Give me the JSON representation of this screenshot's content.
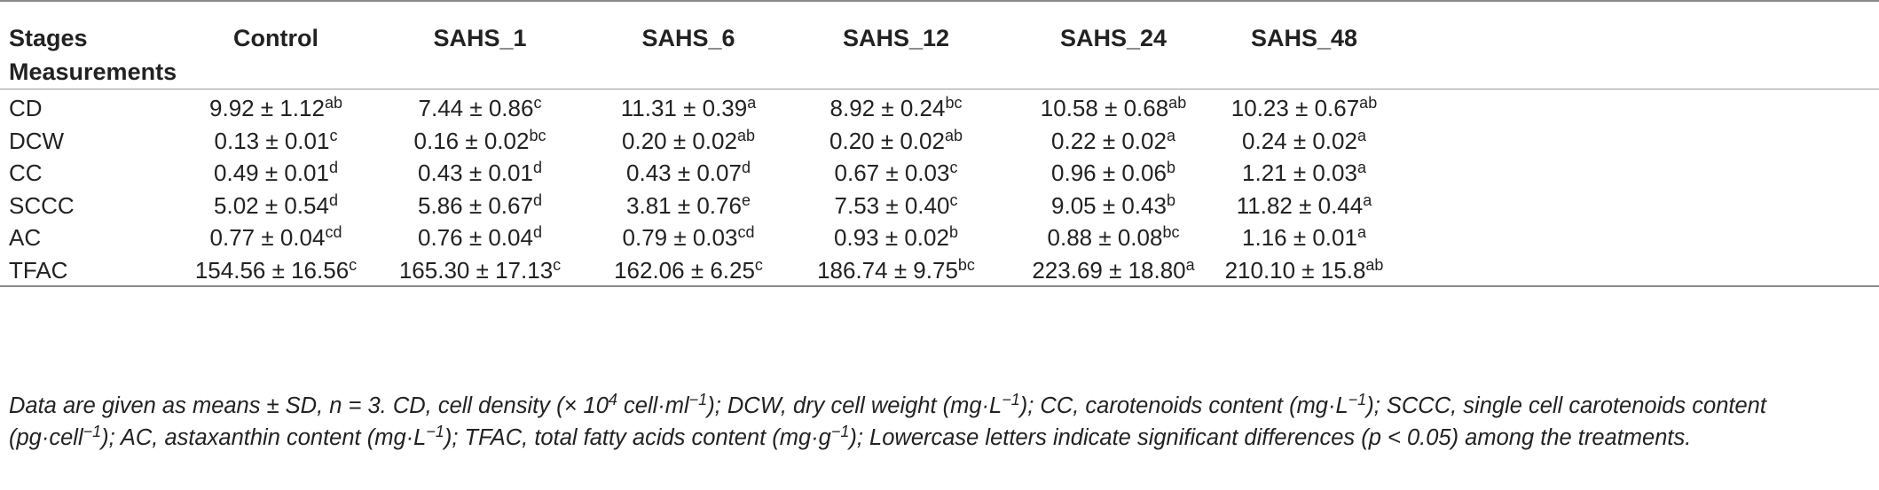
{
  "table": {
    "header_stages": "Stages",
    "header_measurements": "Measurements",
    "columns": [
      "Control",
      "SAHS_1",
      "SAHS_6",
      "SAHS_12",
      "SAHS_24",
      "SAHS_48"
    ],
    "rows": [
      {
        "label": "CD",
        "cells": [
          {
            "v": "9.92 ± 1.12",
            "s": "ab"
          },
          {
            "v": "7.44 ± 0.86",
            "s": "c"
          },
          {
            "v": "11.31 ± 0.39",
            "s": "a"
          },
          {
            "v": "8.92 ± 0.24",
            "s": "bc"
          },
          {
            "v": "10.58 ± 0.68",
            "s": "ab"
          },
          {
            "v": "10.23 ± 0.67",
            "s": "ab"
          }
        ]
      },
      {
        "label": "DCW",
        "cells": [
          {
            "v": "0.13 ± 0.01",
            "s": "c"
          },
          {
            "v": "0.16 ± 0.02",
            "s": "bc"
          },
          {
            "v": "0.20 ± 0.02",
            "s": "ab"
          },
          {
            "v": "0.20 ± 0.02",
            "s": "ab"
          },
          {
            "v": "0.22 ± 0.02",
            "s": "a"
          },
          {
            "v": "0.24 ± 0.02",
            "s": "a"
          }
        ]
      },
      {
        "label": "CC",
        "cells": [
          {
            "v": "0.49 ± 0.01",
            "s": "d"
          },
          {
            "v": "0.43 ± 0.01",
            "s": "d"
          },
          {
            "v": "0.43 ± 0.07",
            "s": "d"
          },
          {
            "v": "0.67 ± 0.03",
            "s": "c"
          },
          {
            "v": "0.96 ± 0.06",
            "s": "b"
          },
          {
            "v": "1.21 ± 0.03",
            "s": "a"
          }
        ]
      },
      {
        "label": "SCCC",
        "cells": [
          {
            "v": "5.02 ± 0.54",
            "s": "d"
          },
          {
            "v": "5.86 ± 0.67",
            "s": "d"
          },
          {
            "v": "3.81 ± 0.76",
            "s": "e"
          },
          {
            "v": "7.53 ± 0.40",
            "s": "c"
          },
          {
            "v": "9.05 ± 0.43",
            "s": "b"
          },
          {
            "v": "11.82 ± 0.44",
            "s": "a"
          }
        ]
      },
      {
        "label": "AC",
        "cells": [
          {
            "v": "0.77 ± 0.04",
            "s": "cd"
          },
          {
            "v": "0.76 ± 0.04",
            "s": "d"
          },
          {
            "v": "0.79 ± 0.03",
            "s": "cd"
          },
          {
            "v": "0.93 ± 0.02",
            "s": "b"
          },
          {
            "v": "0.88 ± 0.08",
            "s": "bc"
          },
          {
            "v": "1.16 ± 0.01",
            "s": "a"
          }
        ]
      },
      {
        "label": "TFAC",
        "cells": [
          {
            "v": "154.56 ± 16.56",
            "s": "c"
          },
          {
            "v": "165.30 ± 17.13",
            "s": "c"
          },
          {
            "v": "162.06 ± 6.25",
            "s": "c"
          },
          {
            "v": "186.74 ± 9.75",
            "s": "bc"
          },
          {
            "v": "223.69 ± 18.80",
            "s": "a"
          },
          {
            "v": "210.10 ± 15.8",
            "s": "ab"
          }
        ]
      }
    ]
  },
  "footnote": {
    "p1": "Data are given as means ± SD, n = 3. CD, cell density (× 10",
    "p1_sup": "4",
    "p2": " cell·ml",
    "p2_sup": "−1",
    "p3": "); DCW, dry cell weight (mg·L",
    "p3_sup": "−1",
    "p4": "); CC, carotenoids content (mg·L",
    "p4_sup": "−1",
    "p5": "); SCCC, single cell carotenoids content (pg·cell",
    "p5_sup": "−1",
    "p6": "); AC, astaxanthin content (mg·L",
    "p6_sup": "−1",
    "p7": "); TFAC, total fatty acids content (mg·g",
    "p7_sup": "−1",
    "p8": "); Lowercase letters indicate significant differences (p < 0.05) among the treatments."
  }
}
